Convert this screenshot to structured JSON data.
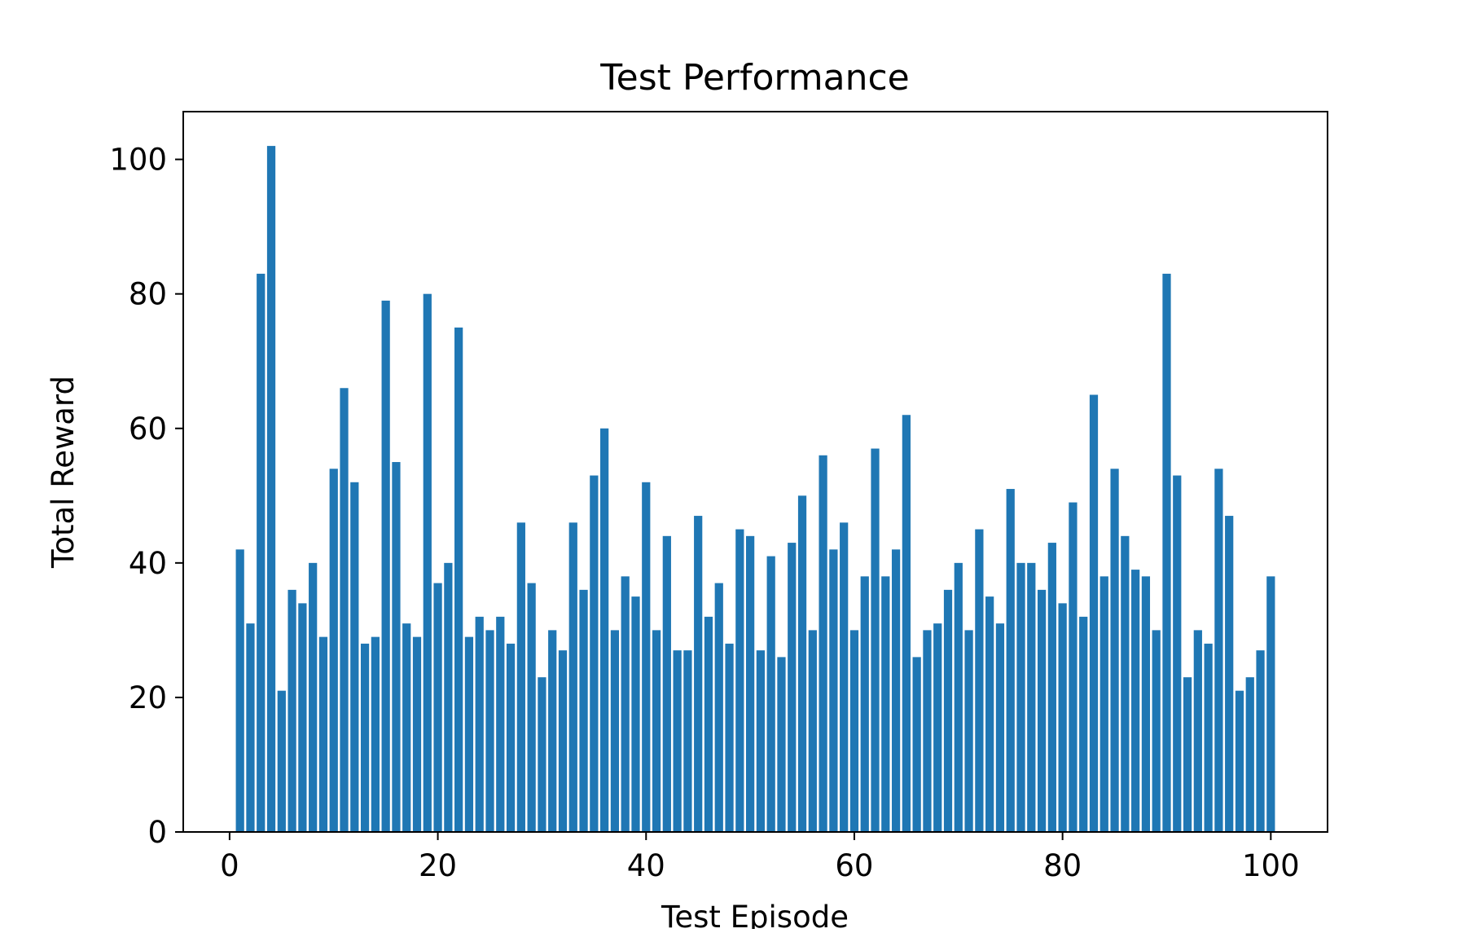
{
  "chart_data": {
    "type": "bar",
    "title": "Test Performance",
    "xlabel": "Test Episode",
    "ylabel": "Total Reward",
    "x": [
      1,
      2,
      3,
      4,
      5,
      6,
      7,
      8,
      9,
      10,
      11,
      12,
      13,
      14,
      15,
      16,
      17,
      18,
      19,
      20,
      21,
      22,
      23,
      24,
      25,
      26,
      27,
      28,
      29,
      30,
      31,
      32,
      33,
      34,
      35,
      36,
      37,
      38,
      39,
      40,
      41,
      42,
      43,
      44,
      45,
      46,
      47,
      48,
      49,
      50,
      51,
      52,
      53,
      54,
      55,
      56,
      57,
      58,
      59,
      60,
      61,
      62,
      63,
      64,
      65,
      66,
      67,
      68,
      69,
      70,
      71,
      72,
      73,
      74,
      75,
      76,
      77,
      78,
      79,
      80,
      81,
      82,
      83,
      84,
      85,
      86,
      87,
      88,
      89,
      90,
      91,
      92,
      93,
      94,
      95,
      96,
      97,
      98,
      99,
      100
    ],
    "values": [
      42,
      31,
      83,
      102,
      21,
      36,
      34,
      40,
      29,
      54,
      66,
      52,
      28,
      29,
      79,
      55,
      31,
      29,
      80,
      37,
      40,
      75,
      29,
      32,
      30,
      32,
      28,
      46,
      37,
      23,
      30,
      27,
      46,
      36,
      53,
      60,
      30,
      38,
      35,
      52,
      30,
      44,
      27,
      27,
      47,
      32,
      37,
      28,
      45,
      44,
      27,
      41,
      26,
      43,
      50,
      30,
      56,
      42,
      46,
      30,
      38,
      57,
      38,
      42,
      62,
      26,
      30,
      31,
      36,
      40,
      30,
      45,
      35,
      31,
      51,
      40,
      40,
      36,
      43,
      34,
      49,
      32,
      65,
      38,
      54,
      44,
      39,
      38,
      30,
      83,
      53,
      23,
      30,
      28,
      54,
      47,
      21,
      23,
      27,
      38
    ],
    "xlim": [
      -4.45,
      105.45
    ],
    "ylim": [
      0,
      107.1
    ],
    "xticks": [
      0,
      20,
      40,
      60,
      80,
      100
    ],
    "yticks": [
      0,
      20,
      40,
      60,
      80,
      100
    ],
    "bar_color": "#1f77b4",
    "grid": false,
    "legend": "none"
  }
}
